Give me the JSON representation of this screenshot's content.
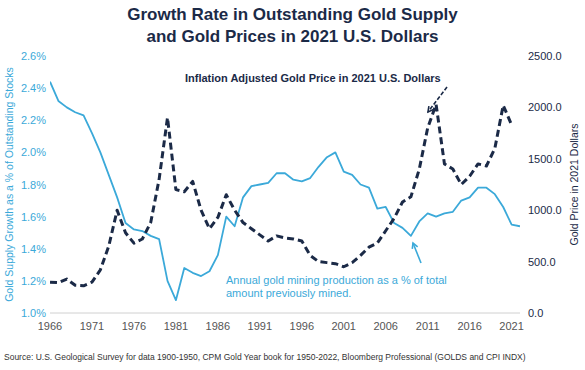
{
  "chart_data": {
    "type": "line",
    "title": "Growth Rate in Outstanding Gold Supply\nand Gold Prices in 2021 U.S. Dollars",
    "ylabel": "Gold Supply Growth as a % of Outstanding Stocks",
    "y2label": "Gold Price in 2021 Dollars",
    "source": "Source: U.S. Geological Survey for data 1900-1950, CPM Gold Year book for 1950-2022, Bloomberg Professional (GOLDS and CPI INDX)",
    "x": [
      1966,
      1967,
      1968,
      1969,
      1970,
      1971,
      1972,
      1973,
      1974,
      1975,
      1976,
      1977,
      1978,
      1979,
      1980,
      1981,
      1982,
      1983,
      1984,
      1985,
      1986,
      1987,
      1988,
      1989,
      1990,
      1991,
      1992,
      1993,
      1994,
      1995,
      1996,
      1997,
      1998,
      1999,
      2000,
      2001,
      2002,
      2003,
      2004,
      2005,
      2006,
      2007,
      2008,
      2009,
      2010,
      2011,
      2012,
      2013,
      2014,
      2015,
      2016,
      2017,
      2018,
      2019,
      2020,
      2021,
      2022
    ],
    "series": [
      {
        "name": "Annual gold mining production as a % of total\namount previously mined.",
        "color": "#3ba9d9",
        "line_style": "solid",
        "values": [
          2.44,
          2.32,
          2.28,
          2.25,
          2.23,
          2.12,
          2.0,
          1.86,
          1.72,
          1.56,
          1.52,
          1.51,
          1.48,
          1.46,
          1.2,
          1.08,
          1.28,
          1.25,
          1.23,
          1.26,
          1.36,
          1.6,
          1.54,
          1.72,
          1.79,
          1.8,
          1.81,
          1.87,
          1.87,
          1.83,
          1.82,
          1.84,
          1.91,
          1.97,
          2.0,
          1.88,
          1.86,
          1.8,
          1.78,
          1.65,
          1.66,
          1.56,
          1.53,
          1.48,
          1.57,
          1.62,
          1.6,
          1.62,
          1.63,
          1.7,
          1.72,
          1.78,
          1.78,
          1.74,
          1.66,
          1.55,
          1.54
        ]
      },
      {
        "name": "Inflation Adjusted Gold Price in 2021 U.S. Dollars",
        "color": "#1b2a47",
        "line_style": "dashed",
        "axis": "y2",
        "values": [
          300,
          295,
          330,
          270,
          265,
          300,
          420,
          650,
          1000,
          780,
          680,
          720,
          880,
          1300,
          1900,
          1200,
          1180,
          1280,
          1000,
          820,
          930,
          1150,
          1000,
          880,
          820,
          760,
          700,
          750,
          730,
          720,
          700,
          560,
          500,
          490,
          480,
          450,
          490,
          560,
          640,
          680,
          800,
          920,
          1080,
          1130,
          1400,
          1800,
          2030,
          1450,
          1400,
          1250,
          1330,
          1450,
          1430,
          1600,
          2020,
          1830,
          null
        ]
      }
    ],
    "xlim": [
      1966,
      2022
    ],
    "xticks": [
      1966,
      1971,
      1976,
      1981,
      1986,
      1991,
      1996,
      2001,
      2006,
      2011,
      2016,
      2021
    ],
    "ylim": [
      1.0,
      2.6
    ],
    "yticks": [
      {
        "value": 1.0,
        "label": "1.0%"
      },
      {
        "value": 1.2,
        "label": "1.2%"
      },
      {
        "value": 1.4,
        "label": "1.4%"
      },
      {
        "value": 1.6,
        "label": "1.6%"
      },
      {
        "value": 1.8,
        "label": "1.8%"
      },
      {
        "value": 2.0,
        "label": "2.0%"
      },
      {
        "value": 2.2,
        "label": "2.2%"
      },
      {
        "value": 2.4,
        "label": "2.4%"
      },
      {
        "value": 2.6,
        "label": "2.6%"
      }
    ],
    "y2lim": [
      0,
      2500
    ],
    "y2ticks": [
      {
        "value": 0,
        "label": "0.0"
      },
      {
        "value": 500,
        "label": "500.0"
      },
      {
        "value": 1000,
        "label": "1000.0"
      },
      {
        "value": 1500,
        "label": "1500.0"
      },
      {
        "value": 2000,
        "label": "2000.0"
      },
      {
        "value": 2500,
        "label": "2500.0"
      }
    ],
    "grid": false
  }
}
